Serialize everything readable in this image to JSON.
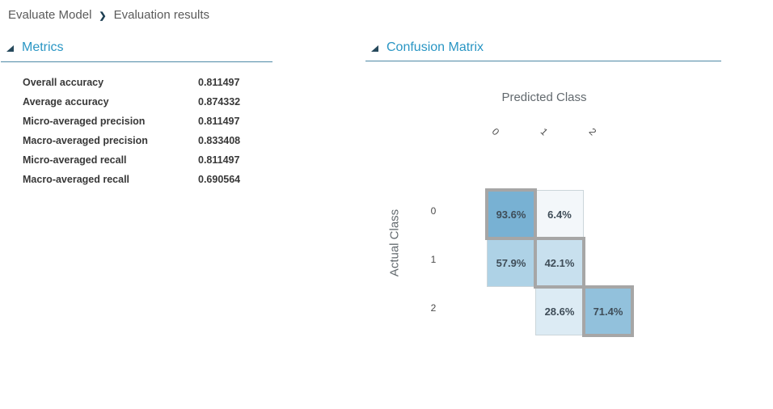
{
  "breadcrumb": {
    "items": [
      {
        "label": "Evaluate Model"
      },
      {
        "label": "Evaluation results"
      }
    ],
    "separator": "❯"
  },
  "metrics_section": {
    "title": "Metrics",
    "rows": [
      {
        "label": "Overall accuracy",
        "value": "0.811497"
      },
      {
        "label": "Average accuracy",
        "value": "0.874332"
      },
      {
        "label": "Micro-averaged precision",
        "value": "0.811497"
      },
      {
        "label": "Macro-averaged precision",
        "value": "0.833408"
      },
      {
        "label": "Micro-averaged recall",
        "value": "0.811497"
      },
      {
        "label": "Macro-averaged recall",
        "value": "0.690564"
      }
    ]
  },
  "confusion_section": {
    "title": "Confusion Matrix",
    "x_axis_title": "Predicted Class",
    "y_axis_title": "Actual Class",
    "col_labels": [
      "0",
      "1",
      "2"
    ],
    "row_labels": [
      "0",
      "1",
      "2"
    ]
  },
  "chart_data": {
    "type": "heatmap",
    "title": "Confusion Matrix",
    "xlabel": "Predicted Class",
    "ylabel": "Actual Class",
    "x_categories": [
      "0",
      "1",
      "2"
    ],
    "y_categories": [
      "0",
      "1",
      "2"
    ],
    "values_percent": [
      [
        93.6,
        6.4,
        null
      ],
      [
        57.9,
        42.1,
        null
      ],
      [
        null,
        28.6,
        71.4
      ]
    ],
    "cells": [
      {
        "row": 0,
        "col": 0,
        "label": "93.6%",
        "value": 93.6,
        "bg": "#78b1d3",
        "diagonal": true
      },
      {
        "row": 0,
        "col": 1,
        "label": "6.4%",
        "value": 6.4,
        "bg": "#f3f7fa",
        "diagonal": false
      },
      {
        "row": 1,
        "col": 0,
        "label": "57.9%",
        "value": 57.9,
        "bg": "#aed2e6",
        "diagonal": false
      },
      {
        "row": 1,
        "col": 1,
        "label": "42.1%",
        "value": 42.1,
        "bg": "#c8e0ee",
        "diagonal": true
      },
      {
        "row": 2,
        "col": 1,
        "label": "28.6%",
        "value": 28.6,
        "bg": "#dcebf4",
        "diagonal": false
      },
      {
        "row": 2,
        "col": 2,
        "label": "71.4%",
        "value": 71.4,
        "bg": "#92c1dc",
        "diagonal": true
      }
    ]
  },
  "colors": {
    "accent_blue": "#2a96c4",
    "underline": "#4e89a6",
    "triangle": "#26495c",
    "diagonal_border": "#a6a6a6",
    "cell_border": "#cbd5da",
    "cell_text": "#3f4d58"
  }
}
